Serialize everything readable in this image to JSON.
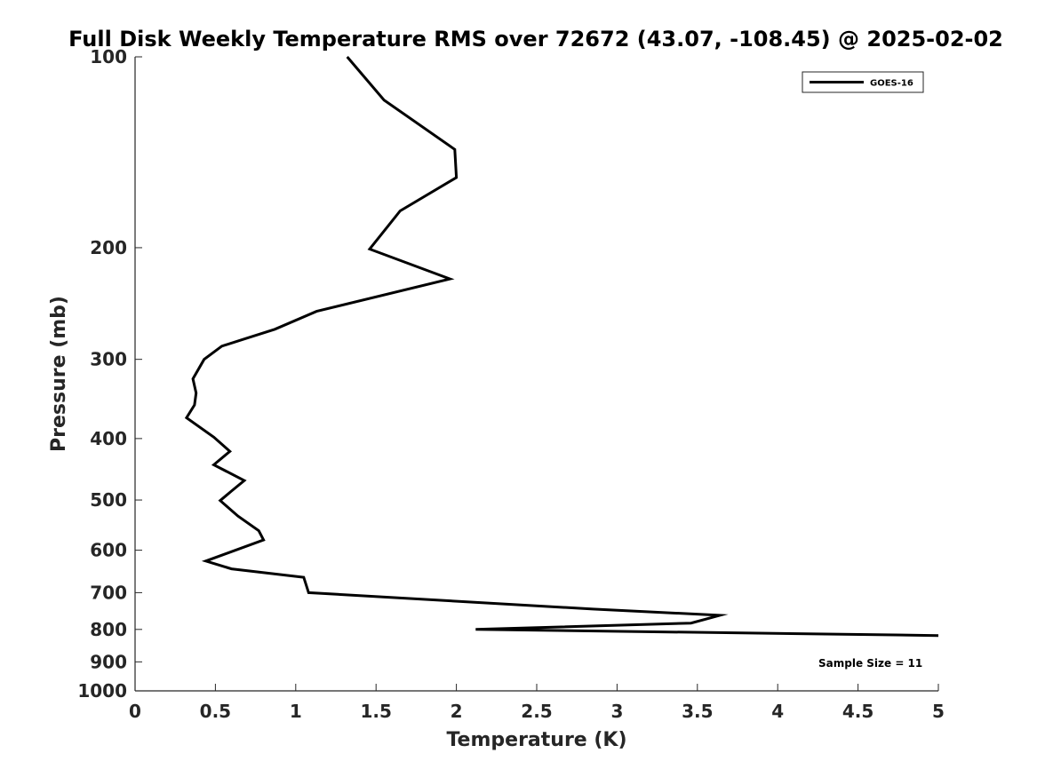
{
  "chart_data": {
    "type": "line",
    "title": "Full Disk Weekly Temperature RMS over 72672 (43.07, -108.45) @ 2025-02-02",
    "xlabel": "Temperature (K)",
    "ylabel": "Pressure (mb)",
    "xlim": [
      0,
      5
    ],
    "ylim": [
      100,
      1000
    ],
    "yscale": "log",
    "y_reversed": true,
    "grid": false,
    "legend_position": "top-right",
    "x_ticks": [
      0,
      0.5,
      1,
      1.5,
      2,
      2.5,
      3,
      3.5,
      4,
      4.5,
      5
    ],
    "x_tick_labels": [
      "0",
      "0.5",
      "1",
      "1.5",
      "2",
      "2.5",
      "3",
      "3.5",
      "4",
      "4.5",
      "5"
    ],
    "y_ticks": [
      100,
      200,
      300,
      400,
      500,
      600,
      700,
      800,
      900,
      1000
    ],
    "y_tick_labels": [
      "100",
      "200",
      "300",
      "400",
      "500",
      "600",
      "700",
      "800",
      "900",
      "1000"
    ],
    "series": [
      {
        "name": "GOES-16",
        "color": "#000000",
        "points": [
          {
            "x": 1.32,
            "y": 100
          },
          {
            "x": 1.55,
            "y": 117
          },
          {
            "x": 1.99,
            "y": 140
          },
          {
            "x": 2.0,
            "y": 155
          },
          {
            "x": 1.65,
            "y": 175
          },
          {
            "x": 1.46,
            "y": 201
          },
          {
            "x": 1.96,
            "y": 224
          },
          {
            "x": 1.13,
            "y": 252
          },
          {
            "x": 0.87,
            "y": 269
          },
          {
            "x": 0.54,
            "y": 286
          },
          {
            "x": 0.43,
            "y": 300
          },
          {
            "x": 0.36,
            "y": 322
          },
          {
            "x": 0.38,
            "y": 339
          },
          {
            "x": 0.37,
            "y": 354
          },
          {
            "x": 0.32,
            "y": 371
          },
          {
            "x": 0.49,
            "y": 398
          },
          {
            "x": 0.59,
            "y": 419
          },
          {
            "x": 0.49,
            "y": 440
          },
          {
            "x": 0.68,
            "y": 466
          },
          {
            "x": 0.6,
            "y": 484
          },
          {
            "x": 0.53,
            "y": 501
          },
          {
            "x": 0.64,
            "y": 530
          },
          {
            "x": 0.77,
            "y": 559
          },
          {
            "x": 0.8,
            "y": 578
          },
          {
            "x": 0.44,
            "y": 624
          },
          {
            "x": 0.6,
            "y": 642
          },
          {
            "x": 1.05,
            "y": 662
          },
          {
            "x": 1.08,
            "y": 700
          },
          {
            "x": 2.85,
            "y": 743
          },
          {
            "x": 3.64,
            "y": 760
          },
          {
            "x": 3.46,
            "y": 782
          },
          {
            "x": 2.12,
            "y": 800
          },
          {
            "x": 5.0,
            "y": 818
          }
        ]
      }
    ],
    "annotations": [
      "Sample Size = 11"
    ]
  }
}
